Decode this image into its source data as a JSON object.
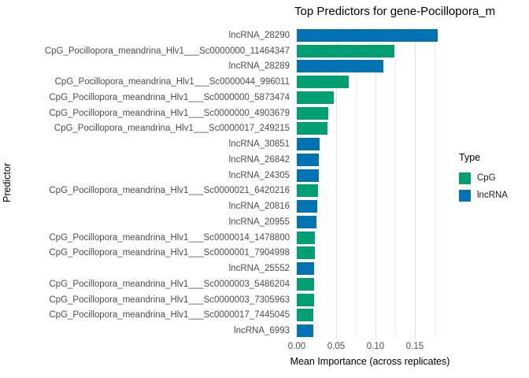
{
  "title": "Top Predictors for gene-Pocillopora_m",
  "axes": {
    "x_label": "Mean Importance (across replicates)",
    "y_label": "Predictor"
  },
  "legend": {
    "title": "Type",
    "items": [
      {
        "label": "CpG",
        "color": "#009e73"
      },
      {
        "label": "lncRNA",
        "color": "#0072b2"
      }
    ]
  },
  "chart_data": {
    "type": "bar",
    "orientation": "horizontal",
    "title": "Top Predictors for gene-Pocillopora_m",
    "xlabel": "Mean Importance (across replicates)",
    "ylabel": "Predictor",
    "xlim": [
      0,
      0.19
    ],
    "grid": true,
    "legend_position": "right",
    "legend_title": "Type",
    "series_colors": {
      "CpG": "#009e73",
      "lncRNA": "#0072b2"
    },
    "x_ticks": [
      {
        "label": "0.00",
        "value": 0.0
      },
      {
        "label": "0.05",
        "value": 0.05
      },
      {
        "label": "0.10",
        "value": 0.1
      },
      {
        "label": "0.15",
        "value": 0.15
      }
    ],
    "x_minor_gridlines": [
      0.025,
      0.075,
      0.125,
      0.175
    ],
    "bars": [
      {
        "label": "lncRNA_28290",
        "type": "lncRNA",
        "value": 0.179
      },
      {
        "label": "CpG_Pocillopora_meandrina_Hlv1___Sc0000000_11464347",
        "type": "CpG",
        "value": 0.124
      },
      {
        "label": "lncRNA_28289",
        "type": "lncRNA",
        "value": 0.11
      },
      {
        "label": "CpG_Pocillopora_meandrina_Hlv1___Sc0000044_996011",
        "type": "CpG",
        "value": 0.066
      },
      {
        "label": "CpG_Pocillopora_meandrina_Hlv1___Sc0000000_5873474",
        "type": "CpG",
        "value": 0.047
      },
      {
        "label": "CpG_Pocillopora_meandrina_Hlv1___Sc0000000_4903679",
        "type": "CpG",
        "value": 0.04
      },
      {
        "label": "CpG_Pocillopora_meandrina_Hlv1___Sc0000017_249215",
        "type": "CpG",
        "value": 0.039
      },
      {
        "label": "lncRNA_30851",
        "type": "lncRNA",
        "value": 0.029
      },
      {
        "label": "lncRNA_26842",
        "type": "lncRNA",
        "value": 0.028
      },
      {
        "label": "lncRNA_24305",
        "type": "lncRNA",
        "value": 0.028
      },
      {
        "label": "CpG_Pocillopora_meandrina_Hlv1___Sc0000021_6420216",
        "type": "CpG",
        "value": 0.027
      },
      {
        "label": "lncRNA_20816",
        "type": "lncRNA",
        "value": 0.026
      },
      {
        "label": "lncRNA_20955",
        "type": "lncRNA",
        "value": 0.025
      },
      {
        "label": "CpG_Pocillopora_meandrina_Hlv1___Sc0000014_1478800",
        "type": "CpG",
        "value": 0.023
      },
      {
        "label": "CpG_Pocillopora_meandrina_Hlv1___Sc0000001_7904998",
        "type": "CpG",
        "value": 0.023
      },
      {
        "label": "lncRNA_25552",
        "type": "lncRNA",
        "value": 0.022
      },
      {
        "label": "CpG_Pocillopora_meandrina_Hlv1___Sc0000003_5486204",
        "type": "CpG",
        "value": 0.022
      },
      {
        "label": "CpG_Pocillopora_meandrina_Hlv1___Sc0000003_7305963",
        "type": "CpG",
        "value": 0.022
      },
      {
        "label": "CpG_Pocillopora_meandrina_Hlv1___Sc0000017_7445045",
        "type": "CpG",
        "value": 0.021
      },
      {
        "label": "lncRNA_6993",
        "type": "lncRNA",
        "value": 0.021
      }
    ]
  }
}
